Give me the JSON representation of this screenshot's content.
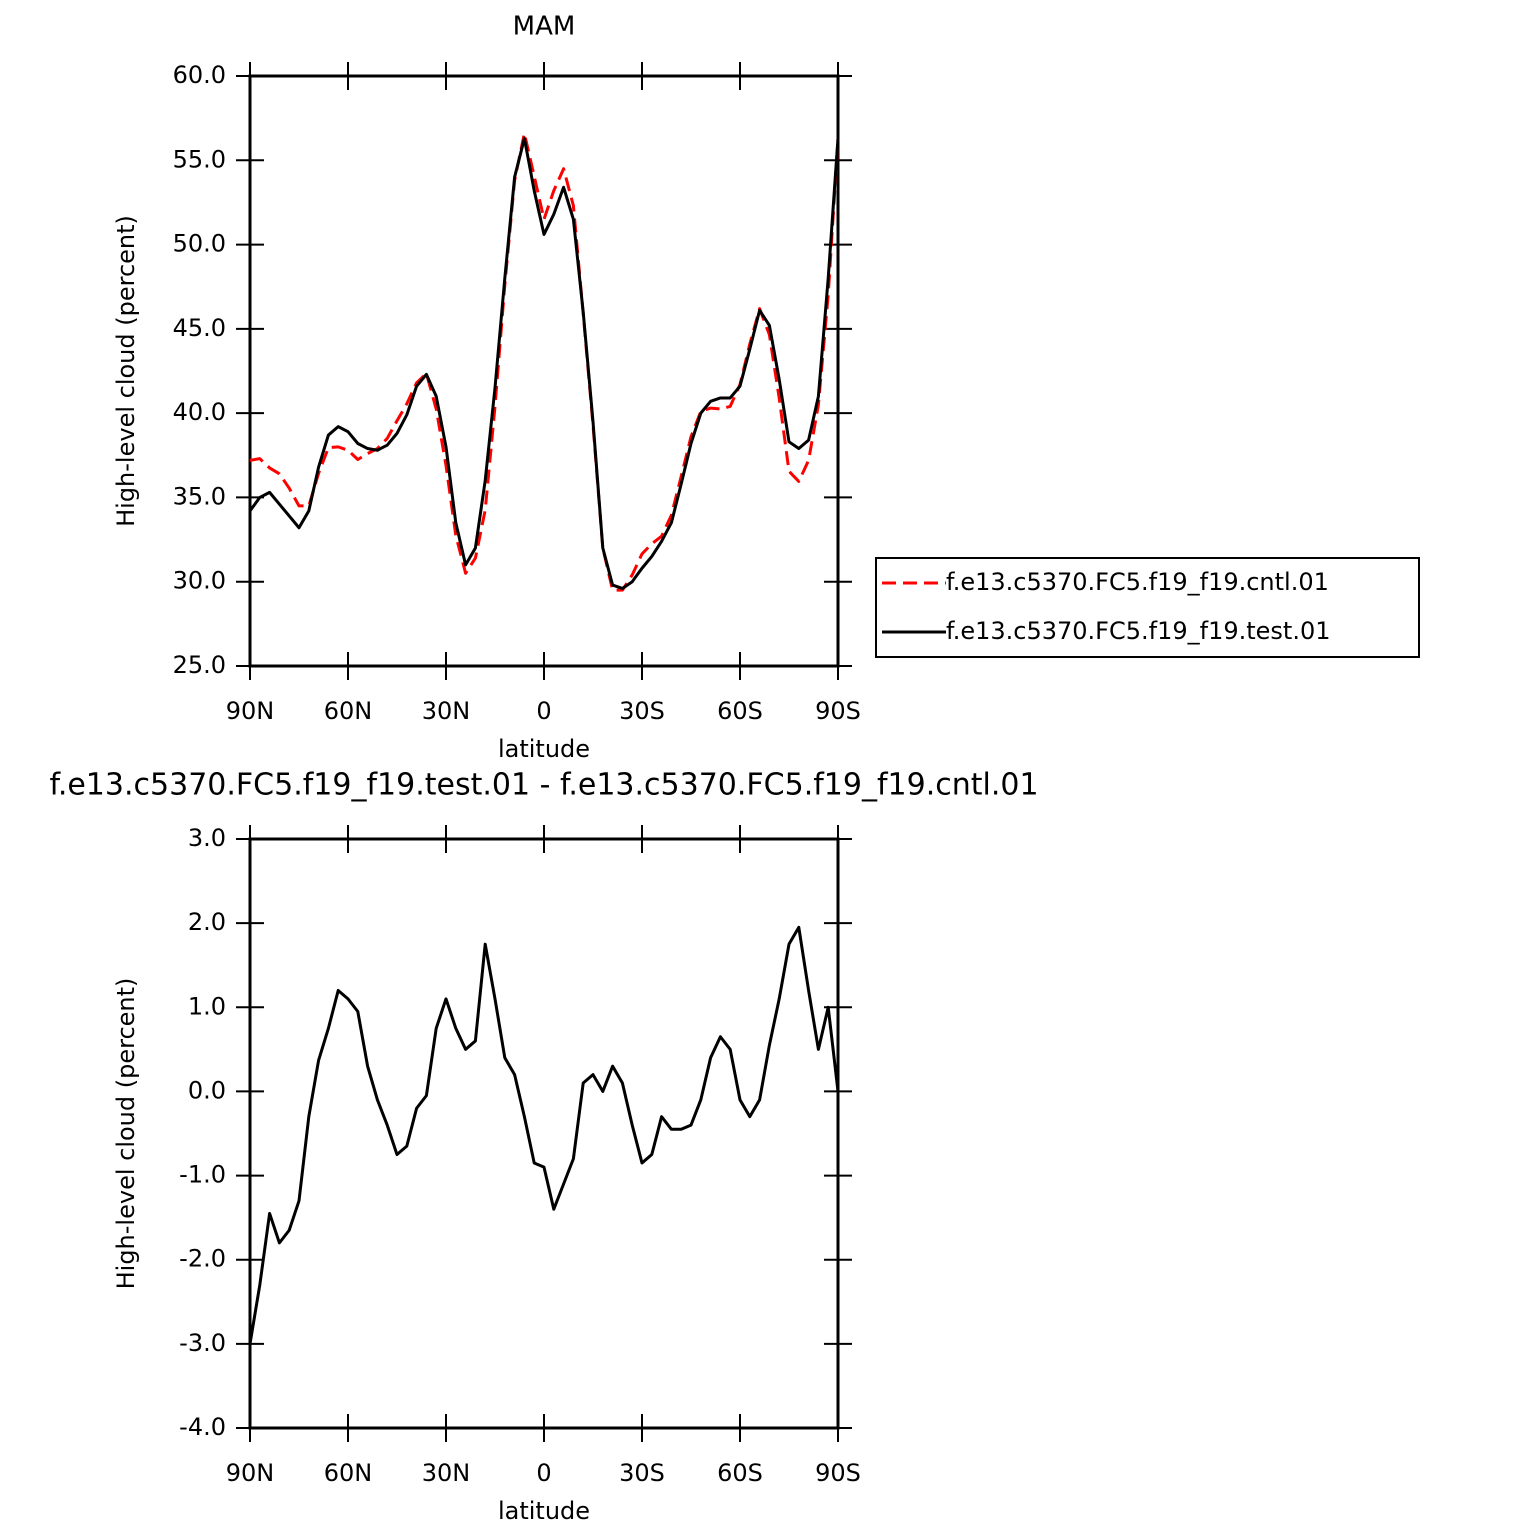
{
  "chart_data": [
    {
      "type": "line",
      "title": "MAM",
      "xlabel": "latitude",
      "ylabel": "High-level cloud (percent)",
      "x": [
        90,
        87,
        84,
        81,
        78,
        75,
        72,
        69,
        66,
        63,
        60,
        57,
        54,
        51,
        48,
        45,
        42,
        39,
        36,
        33,
        30,
        27,
        24,
        21,
        18,
        15,
        12,
        9,
        6,
        3,
        0,
        -3,
        -6,
        -9,
        -12,
        -15,
        -18,
        -21,
        -24,
        -27,
        -30,
        -33,
        -36,
        -39,
        -42,
        -45,
        -48,
        -51,
        -54,
        -57,
        -60,
        -63,
        -66,
        -69,
        -72,
        -75,
        -78,
        -81,
        -84,
        -87,
        -90
      ],
      "series": [
        {
          "name": "f.e13.c5370.FC5.f19_f19.cntl.01",
          "color": "#ff0000",
          "line_style": "dashed",
          "values": [
            37.2,
            37.3,
            36.75,
            36.4,
            35.55,
            34.5,
            34.5,
            36.43,
            37.95,
            38.0,
            37.8,
            37.25,
            37.6,
            37.9,
            38.5,
            39.55,
            40.55,
            41.8,
            42.35,
            40.25,
            36.9,
            32.75,
            30.5,
            31.4,
            34.25,
            40.4,
            47.6,
            53.8,
            56.6,
            54.05,
            51.5,
            53.2,
            54.5,
            52.3,
            45.9,
            39.3,
            32.0,
            29.5,
            29.5,
            30.4,
            31.65,
            32.25,
            32.7,
            33.95,
            36.25,
            38.6,
            40.1,
            40.3,
            40.25,
            40.4,
            41.7,
            44.1,
            46.2,
            44.65,
            40.9,
            36.55,
            35.95,
            37.2,
            40.5,
            47.0,
            56.3
          ]
        },
        {
          "name": "f.e13.c5370.FC5.f19_f19.test.01",
          "color": "#000000",
          "line_style": "solid",
          "values": [
            34.2,
            35.0,
            35.3,
            34.6,
            33.9,
            33.2,
            34.2,
            36.8,
            38.7,
            39.2,
            38.9,
            38.2,
            37.9,
            37.8,
            38.1,
            38.8,
            39.9,
            41.6,
            42.3,
            41.0,
            38.0,
            33.5,
            31.0,
            32.0,
            36.0,
            41.5,
            48.0,
            54.0,
            56.3,
            53.2,
            50.6,
            51.8,
            53.4,
            51.5,
            46.0,
            39.5,
            32.0,
            29.8,
            29.6,
            30.0,
            30.8,
            31.5,
            32.4,
            33.5,
            35.8,
            38.2,
            40.0,
            40.7,
            40.9,
            40.9,
            41.6,
            43.8,
            46.1,
            45.2,
            42.0,
            38.3,
            37.9,
            38.4,
            41.0,
            48.0,
            56.3
          ]
        }
      ],
      "xlim": [
        90,
        -90
      ],
      "xticks": [
        {
          "value": 90,
          "label": "90N"
        },
        {
          "value": 60,
          "label": "60N"
        },
        {
          "value": 30,
          "label": "30N"
        },
        0,
        {
          "value": -30,
          "label": "30S"
        },
        {
          "value": -60,
          "label": "60S"
        },
        {
          "value": -90,
          "label": "90S"
        }
      ],
      "ylim": [
        25,
        60
      ],
      "yticks": [
        {
          "value": 25,
          "label": "25.0"
        },
        {
          "value": 30,
          "label": "30.0"
        },
        {
          "value": 35,
          "label": "35.0"
        },
        {
          "value": 40,
          "label": "40.0"
        },
        {
          "value": 45,
          "label": "45.0"
        },
        {
          "value": 50,
          "label": "50.0"
        },
        {
          "value": 55,
          "label": "55.0"
        },
        {
          "value": 60,
          "label": "60.0"
        }
      ],
      "legend": "right"
    },
    {
      "type": "line",
      "title": "f.e13.c5370.FC5.f19_f19.test.01 - f.e13.c5370.FC5.f19_f19.cntl.01",
      "xlabel": "latitude",
      "ylabel": "High-level cloud (percent)",
      "x": [
        90,
        87,
        84,
        81,
        78,
        75,
        72,
        69,
        66,
        63,
        60,
        57,
        54,
        51,
        48,
        45,
        42,
        39,
        36,
        33,
        30,
        27,
        24,
        21,
        18,
        15,
        12,
        9,
        6,
        3,
        0,
        -3,
        -6,
        -9,
        -12,
        -15,
        -18,
        -21,
        -24,
        -27,
        -30,
        -33,
        -36,
        -39,
        -42,
        -45,
        -48,
        -51,
        -54,
        -57,
        -60,
        -63,
        -66,
        -69,
        -72,
        -75,
        -78,
        -81,
        -84,
        -87,
        -90
      ],
      "series": [
        {
          "color": "#000000",
          "line_style": "solid",
          "values": [
            -3.0,
            -2.3,
            -1.45,
            -1.8,
            -1.65,
            -1.3,
            -0.3,
            0.37,
            0.75,
            1.2,
            1.1,
            0.95,
            0.3,
            -0.1,
            -0.4,
            -0.75,
            -0.65,
            -0.2,
            -0.05,
            0.75,
            1.1,
            0.75,
            0.5,
            0.6,
            1.75,
            1.1,
            0.4,
            0.2,
            -0.3,
            -0.85,
            -0.9,
            -1.4,
            -1.1,
            -0.8,
            0.1,
            0.2,
            0.0,
            0.3,
            0.1,
            -0.4,
            -0.85,
            -0.75,
            -0.3,
            -0.45,
            -0.45,
            -0.4,
            -0.1,
            0.4,
            0.65,
            0.5,
            -0.1,
            -0.3,
            -0.1,
            0.55,
            1.1,
            1.75,
            1.95,
            1.2,
            0.5,
            1.0,
            0.0
          ]
        }
      ],
      "xlim": [
        90,
        -90
      ],
      "xticks": [
        {
          "value": 90,
          "label": "90N"
        },
        {
          "value": 60,
          "label": "60N"
        },
        {
          "value": 30,
          "label": "30N"
        },
        0,
        {
          "value": -30,
          "label": "30S"
        },
        {
          "value": -60,
          "label": "60S"
        },
        {
          "value": -90,
          "label": "90S"
        }
      ],
      "ylim": [
        -4,
        3
      ],
      "yticks": [
        {
          "value": -4,
          "label": "-4.0"
        },
        {
          "value": -3,
          "label": "-3.0"
        },
        {
          "value": -2,
          "label": "-2.0"
        },
        {
          "value": -1,
          "label": "-1.0"
        },
        {
          "value": 0,
          "label": "0.0"
        },
        {
          "value": 1,
          "label": "1.0"
        },
        {
          "value": 2,
          "label": "2.0"
        },
        {
          "value": 3,
          "label": "3.0"
        }
      ]
    }
  ]
}
